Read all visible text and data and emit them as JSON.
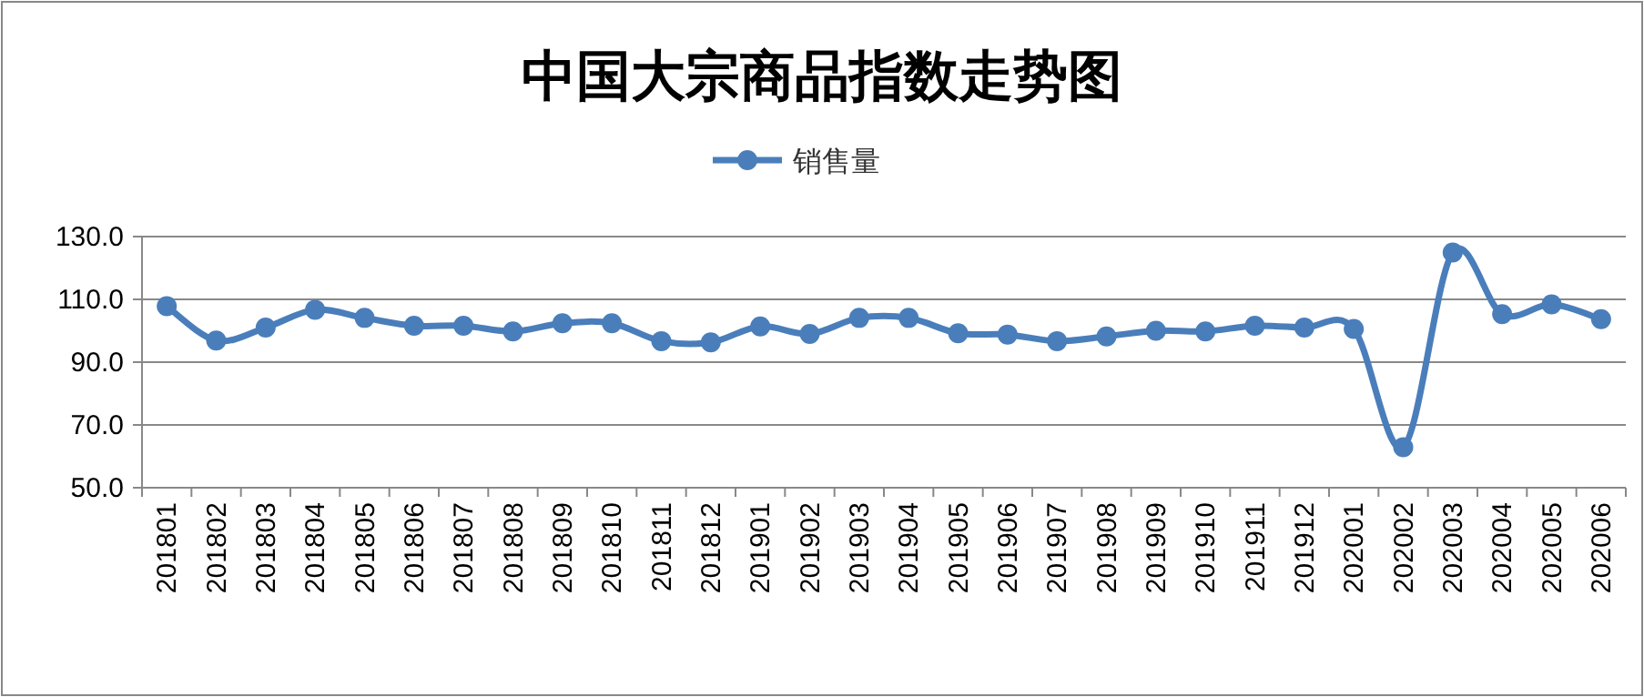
{
  "chart_data": {
    "type": "line",
    "title": "中国大宗商品指数走势图",
    "categories": [
      "201801",
      "201802",
      "201803",
      "201804",
      "201805",
      "201806",
      "201807",
      "201808",
      "201809",
      "201810",
      "201811",
      "201812",
      "201901",
      "201902",
      "201903",
      "201904",
      "201905",
      "201906",
      "201907",
      "201908",
      "201909",
      "201910",
      "201911",
      "201912",
      "202001",
      "202002",
      "202003",
      "202004",
      "202005",
      "202006"
    ],
    "series": [
      {
        "name": "销售量",
        "color": "#4a7ebb",
        "values": [
          107.8,
          96.9,
          101.0,
          106.7,
          104.1,
          101.6,
          101.6,
          99.8,
          102.4,
          102.4,
          96.7,
          96.3,
          101.4,
          99.0,
          104.1,
          104.1,
          99.2,
          98.8,
          96.7,
          98.2,
          100.0,
          99.8,
          101.6,
          101.0,
          100.6,
          62.9,
          124.9,
          105.3,
          108.4,
          103.7
        ]
      }
    ],
    "ylim": [
      50,
      130
    ],
    "yticks": [
      {
        "value": 50,
        "label": "50.0"
      },
      {
        "value": 70,
        "label": "70.0"
      },
      {
        "value": 90,
        "label": "90.0"
      },
      {
        "value": 110,
        "label": "110.0"
      },
      {
        "value": 130,
        "label": "130.0"
      }
    ],
    "grid": "y",
    "legend": "top",
    "marker": "circle",
    "line_style": "solid"
  }
}
